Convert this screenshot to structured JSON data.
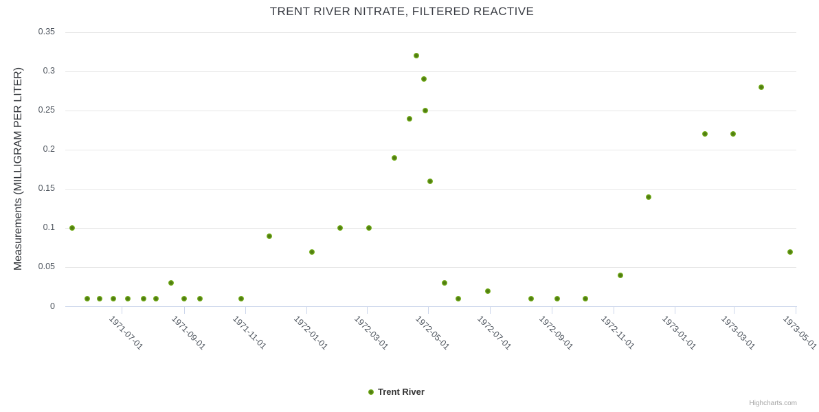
{
  "chart": {
    "credits": "Highcharts.com",
    "colors": {
      "marker_outer": "#86c41e",
      "marker_core": "#517d11",
      "grid_line": "#e6e6e6",
      "axis_line": "#ccd6eb",
      "title_text": "#3b3e45",
      "tick_label_text": "#4d545d"
    }
  },
  "chart_data": {
    "type": "scatter",
    "title": "TRENT RIVER NITRATE, FILTERED REACTIVE",
    "xlabel": "",
    "ylabel": "Measurements (MILLIGRAM PER LITER)",
    "ylim": [
      0,
      0.35
    ],
    "ytick_labels": [
      "0",
      "0.05",
      "0.1",
      "0.15",
      "0.2",
      "0.25",
      "0.3",
      "0.35"
    ],
    "ytick_values": [
      0,
      0.05,
      0.1,
      0.15,
      0.2,
      0.25,
      0.3,
      0.35
    ],
    "xlim": [
      "1971-05-06",
      "1973-05-02"
    ],
    "xtick_labels": [
      "1971-07-01",
      "1971-09-01",
      "1971-11-01",
      "1972-01-01",
      "1972-03-01",
      "1972-05-01",
      "1972-07-01",
      "1972-09-01",
      "1972-11-01",
      "1973-01-01",
      "1973-03-01",
      "1973-05-01"
    ],
    "grid": true,
    "legend_position": "bottom-center",
    "series": [
      {
        "name": "Trent River",
        "color": "#86c41e",
        "points": [
          {
            "date": "1971-05-13",
            "value": 0.1
          },
          {
            "date": "1971-05-28",
            "value": 0.01
          },
          {
            "date": "1971-06-09",
            "value": 0.01
          },
          {
            "date": "1971-06-23",
            "value": 0.01
          },
          {
            "date": "1971-07-07",
            "value": 0.01
          },
          {
            "date": "1971-07-23",
            "value": 0.01
          },
          {
            "date": "1971-08-04",
            "value": 0.01
          },
          {
            "date": "1971-08-19",
            "value": 0.03
          },
          {
            "date": "1971-09-01",
            "value": 0.01
          },
          {
            "date": "1971-09-17",
            "value": 0.01
          },
          {
            "date": "1971-10-28",
            "value": 0.01
          },
          {
            "date": "1971-11-25",
            "value": 0.09
          },
          {
            "date": "1972-01-06",
            "value": 0.07
          },
          {
            "date": "1972-02-03",
            "value": 0.1
          },
          {
            "date": "1972-03-03",
            "value": 0.1
          },
          {
            "date": "1972-03-28",
            "value": 0.19
          },
          {
            "date": "1972-04-12",
            "value": 0.24
          },
          {
            "date": "1972-04-19",
            "value": 0.32
          },
          {
            "date": "1972-04-27",
            "value": 0.29
          },
          {
            "date": "1972-04-28",
            "value": 0.25
          },
          {
            "date": "1972-05-03",
            "value": 0.16
          },
          {
            "date": "1972-05-17",
            "value": 0.03
          },
          {
            "date": "1972-05-31",
            "value": 0.01
          },
          {
            "date": "1972-06-29",
            "value": 0.02
          },
          {
            "date": "1972-08-11",
            "value": 0.01
          },
          {
            "date": "1972-09-06",
            "value": 0.01
          },
          {
            "date": "1972-10-04",
            "value": 0.01
          },
          {
            "date": "1972-11-08",
            "value": 0.04
          },
          {
            "date": "1972-12-06",
            "value": 0.14
          },
          {
            "date": "1973-01-31",
            "value": 0.22
          },
          {
            "date": "1973-02-28",
            "value": 0.22
          },
          {
            "date": "1973-03-28",
            "value": 0.28
          },
          {
            "date": "1973-04-26",
            "value": 0.07
          }
        ]
      }
    ]
  }
}
